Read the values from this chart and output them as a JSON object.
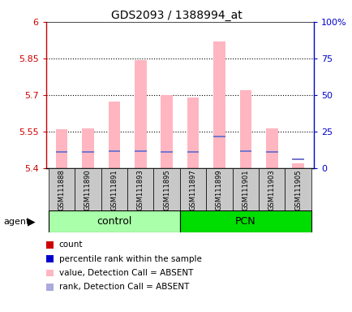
{
  "title": "GDS2093 / 1388994_at",
  "samples": [
    "GSM111888",
    "GSM111890",
    "GSM111891",
    "GSM111893",
    "GSM111895",
    "GSM111897",
    "GSM111899",
    "GSM111901",
    "GSM111903",
    "GSM111905"
  ],
  "groups": [
    "control",
    "control",
    "control",
    "control",
    "control",
    "PCN",
    "PCN",
    "PCN",
    "PCN",
    "PCN"
  ],
  "values": [
    5.56,
    5.565,
    5.675,
    5.845,
    5.7,
    5.69,
    5.92,
    5.72,
    5.565,
    5.42
  ],
  "rank_vals": [
    5.468,
    5.468,
    5.47,
    5.472,
    5.468,
    5.467,
    5.532,
    5.47,
    5.468,
    5.437
  ],
  "ylim_left": [
    5.4,
    6.0
  ],
  "ylim_right": [
    0,
    100
  ],
  "yticks_left": [
    5.4,
    5.55,
    5.7,
    5.85,
    6.0
  ],
  "yticks_right": [
    0,
    25,
    50,
    75,
    100
  ],
  "ytick_labels_left": [
    "5.4",
    "5.55",
    "5.7",
    "5.85",
    "6"
  ],
  "ytick_labels_right": [
    "0",
    "25",
    "50",
    "75",
    "100%"
  ],
  "value_color": "#FFB6C1",
  "rank_color": "#AAAADD",
  "rank_marker_color": "#7777CC",
  "left_axis_color": "#CC0000",
  "right_axis_color": "#0000CC",
  "control_bg": "#AAFFAA",
  "pcn_bg": "#00DD00",
  "sample_bg": "#C8C8C8",
  "grid_color": "#000000",
  "group_label_control": "control",
  "group_label_pcn": "PCN",
  "agent_label": "agent",
  "legend_items": [
    {
      "color": "#CC0000",
      "label": "count"
    },
    {
      "color": "#0000CC",
      "label": "percentile rank within the sample"
    },
    {
      "color": "#FFB6C1",
      "label": "value, Detection Call = ABSENT"
    },
    {
      "color": "#AAAADD",
      "label": "rank, Detection Call = ABSENT"
    }
  ]
}
